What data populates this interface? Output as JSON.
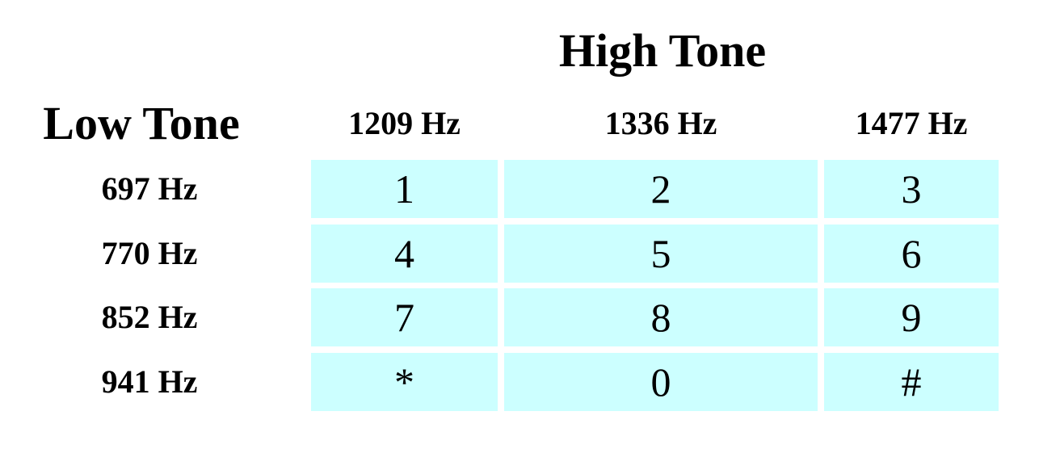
{
  "high_tone_title": "High Tone",
  "low_tone_title": "Low Tone",
  "high_frequencies": [
    "1209 Hz",
    "1336 Hz",
    "1477 Hz"
  ],
  "low_frequencies": [
    "697 Hz",
    "770 Hz",
    "852 Hz",
    "941 Hz"
  ],
  "keys": [
    [
      "1",
      "2",
      "3"
    ],
    [
      "4",
      "5",
      "6"
    ],
    [
      "7",
      "8",
      "9"
    ],
    [
      "*",
      "0",
      "#"
    ]
  ],
  "colors": {
    "key_background": "#ccffff",
    "page_background": "#ffffff",
    "text": "#000000"
  }
}
